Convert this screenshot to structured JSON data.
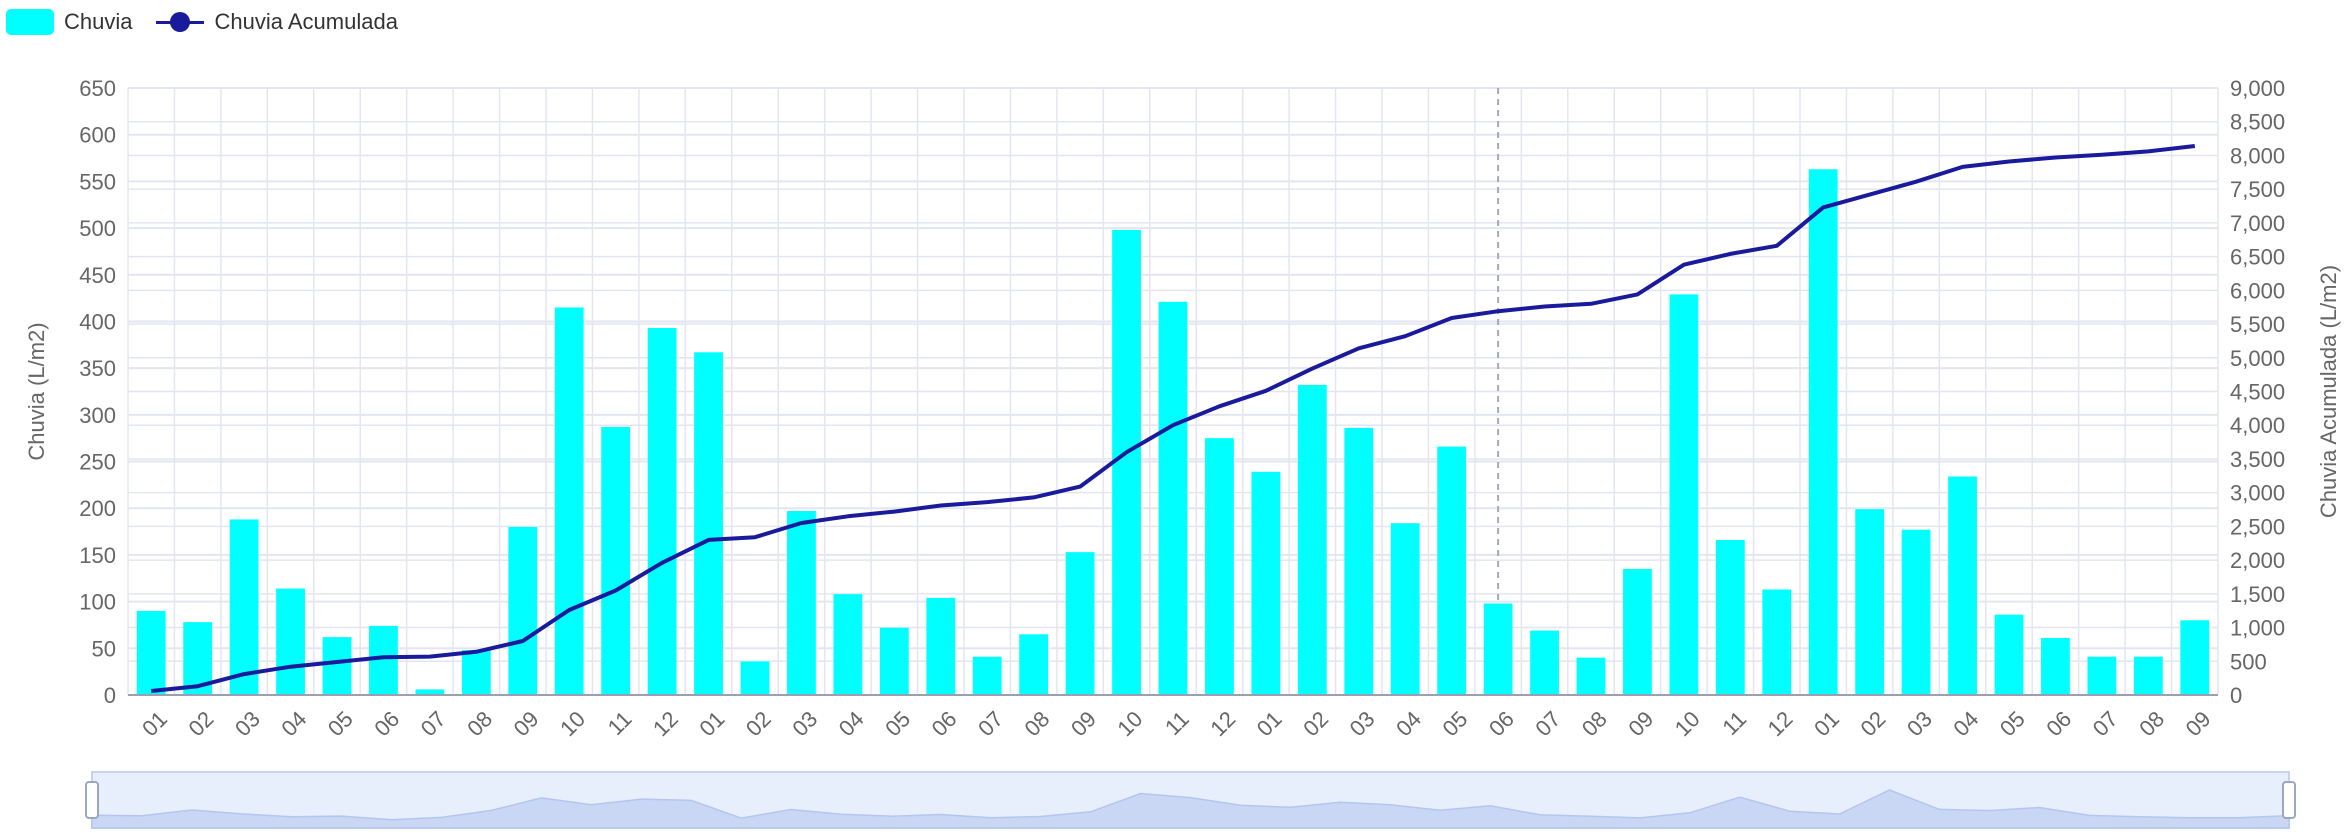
{
  "legend": {
    "bar_label": "Chuvia",
    "line_label": "Chuvia Acumulada"
  },
  "colors": {
    "bar": "#00FFFF",
    "line": "#1A1A9C",
    "grid": "#E3E6F0",
    "axis_text": "#666666",
    "dataZoom_bg": "#E7EEFC",
    "dataZoom_fill": "#C9D6F4"
  },
  "chart_data": {
    "type": "bar",
    "categories": [
      "01",
      "02",
      "03",
      "04",
      "05",
      "06",
      "07",
      "08",
      "09",
      "10",
      "11",
      "12",
      "01",
      "02",
      "03",
      "04",
      "05",
      "06",
      "07",
      "08",
      "09",
      "10",
      "11",
      "12",
      "01",
      "02",
      "03",
      "04",
      "05",
      "06",
      "07",
      "08",
      "09",
      "10",
      "11",
      "12",
      "01",
      "02",
      "03",
      "04",
      "05",
      "06",
      "07",
      "08",
      "09"
    ],
    "series": [
      {
        "name": "Chuvia",
        "type": "bar",
        "axis": "left",
        "values": [
          90,
          78,
          188,
          114,
          62,
          74,
          6,
          48,
          180,
          415,
          287,
          393,
          367,
          36,
          197,
          108,
          72,
          104,
          41,
          65,
          153,
          498,
          421,
          275,
          239,
          332,
          286,
          184,
          266,
          98,
          69,
          40,
          135,
          429,
          166,
          113,
          563,
          199,
          177,
          234,
          86,
          61,
          41,
          41,
          80
        ]
      },
      {
        "name": "Chuvia Acumulada",
        "type": "line",
        "axis": "right",
        "values": [
          60,
          130,
          310,
          420,
          490,
          560,
          570,
          640,
          800,
          1260,
          1550,
          1960,
          2300,
          2340,
          2550,
          2650,
          2720,
          2810,
          2860,
          2930,
          3090,
          3600,
          4000,
          4280,
          4510,
          4840,
          5140,
          5320,
          5590,
          5690,
          5760,
          5800,
          5940,
          6380,
          6540,
          6660,
          7230,
          7420,
          7610,
          7830,
          7910,
          7970,
          8010,
          8060,
          8140
        ]
      }
    ],
    "yaxis_left": {
      "label": "Chuvia (L/m2)",
      "min": 0,
      "max": 650,
      "interval": 50,
      "ticks": [
        "0",
        "50",
        "100",
        "150",
        "200",
        "250",
        "300",
        "350",
        "400",
        "450",
        "500",
        "550",
        "600",
        "650"
      ]
    },
    "yaxis_right": {
      "label": "Chuvia Acumulada (L/m2)",
      "min": 0,
      "max": 9000,
      "interval": 500,
      "ticks": [
        "0",
        "500",
        "1,000",
        "1,500",
        "2,000",
        "2,500",
        "3,000",
        "3,500",
        "4,000",
        "4,500",
        "5,000",
        "5,500",
        "6,000",
        "6,500",
        "7,000",
        "7,500",
        "8,000",
        "8,500",
        "9,000"
      ]
    },
    "grid": true,
    "legend_position": "top-left",
    "marker_category_index": 29
  }
}
